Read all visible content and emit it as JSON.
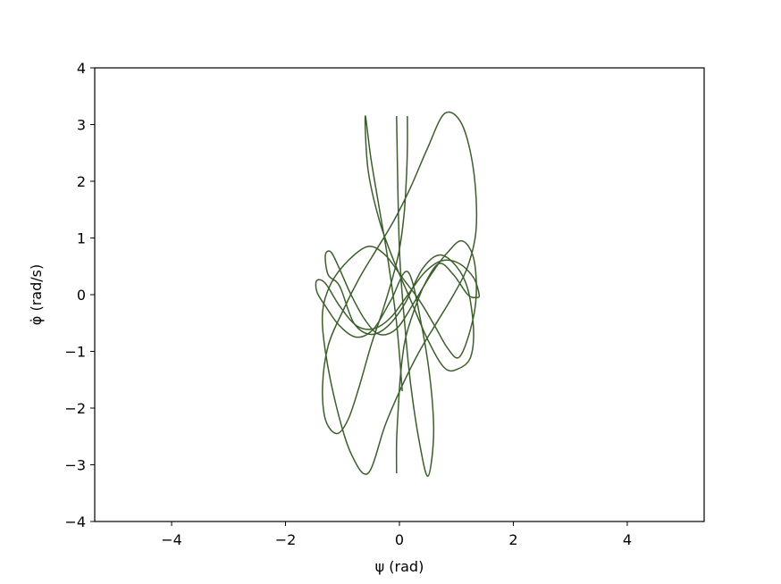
{
  "chart_data": {
    "type": "line",
    "title": "",
    "xlabel": "ψ (rad)",
    "ylabel": "φ̇ (rad/s)",
    "xlim": [
      -5.35,
      5.35
    ],
    "ylim": [
      -4,
      4
    ],
    "xticks": [
      -4,
      -2,
      0,
      2,
      4
    ],
    "yticks": [
      -4,
      -3,
      -2,
      -1,
      0,
      1,
      2,
      3,
      4
    ],
    "xtick_labels": [
      "−4",
      "−2",
      "0",
      "2",
      "4"
    ],
    "ytick_labels": [
      "−4",
      "−3",
      "−2",
      "−1",
      "0",
      "1",
      "2",
      "3",
      "4"
    ],
    "grid": false,
    "legend": null,
    "line_color": "#3b5e2b",
    "series": [
      {
        "description_visible": "phase-space trajectory",
        "x": [
          0.14,
          0.14,
          0.12,
          0.08,
          0.0,
          -0.12,
          -0.3,
          -0.5,
          -0.7,
          -0.9,
          -1.1,
          -1.3,
          -1.35,
          -1.25,
          -1.0,
          -0.7,
          -0.4,
          -0.1,
          0.2,
          0.5,
          0.8,
          1.1,
          1.3,
          1.35,
          1.2,
          0.95,
          0.65,
          0.35,
          0.05,
          -0.25,
          -0.55,
          -0.85,
          -1.1,
          -1.3,
          -1.35,
          -1.2,
          -0.9,
          -0.55,
          -0.25,
          0.05,
          0.35,
          0.62,
          0.85,
          1.05,
          1.25,
          1.35,
          1.3,
          1.1,
          0.85,
          0.55,
          0.25,
          -0.05,
          -0.35,
          -0.6,
          -0.85,
          -1.05,
          -1.2,
          -1.3,
          -1.25,
          -1.05,
          -0.8,
          -0.5,
          -0.2,
          0.1,
          0.4,
          0.7,
          1.0,
          1.2,
          1.3,
          1.25,
          1.05,
          0.8,
          0.5,
          0.2,
          -0.1,
          -0.35,
          -0.55,
          -0.6,
          -0.5,
          -0.35,
          -0.2,
          -0.05,
          0.05
        ],
        "y": [
          3.15,
          2.6,
          2.0,
          1.4,
          0.8,
          0.3,
          -0.3,
          -0.9,
          -1.6,
          -2.2,
          -2.45,
          -2.2,
          -1.6,
          -0.9,
          -0.3,
          0.3,
          0.8,
          1.3,
          1.9,
          2.6,
          3.2,
          3.0,
          2.2,
          1.2,
          0.5,
          0.0,
          -0.5,
          -1.0,
          -1.6,
          -2.3,
          -3.15,
          -2.8,
          -2.0,
          -1.0,
          -0.3,
          0.2,
          0.6,
          0.85,
          0.7,
          0.3,
          -0.1,
          -0.55,
          -0.95,
          -1.1,
          -0.6,
          0.0,
          0.65,
          0.95,
          0.75,
          0.35,
          -0.15,
          -0.6,
          -0.7,
          -0.45,
          0.0,
          0.45,
          0.75,
          0.7,
          0.35,
          0.15,
          -0.5,
          -0.7,
          -0.55,
          -0.15,
          0.45,
          0.7,
          0.5,
          0.1,
          -0.6,
          -1.1,
          -1.3,
          -1.3,
          -0.8,
          -0.1,
          0.6,
          1.3,
          2.2,
          3.15,
          2.4,
          1.5,
          0.6,
          -0.5,
          -1.7
        ]
      },
      {
        "x": [
          -0.05,
          -0.05,
          -0.02,
          0.02,
          0.1,
          0.25,
          0.45,
          0.7,
          0.95,
          1.2,
          1.35,
          1.4,
          1.3,
          1.05,
          0.75,
          0.45,
          0.15,
          -0.15,
          -0.45,
          -0.75,
          -1.05,
          -1.3,
          -1.45,
          -1.45,
          -1.3,
          -1.05,
          -0.75,
          -0.45,
          -0.15,
          0.15,
          0.4,
          0.55,
          0.6,
          0.5,
          0.35,
          0.2,
          0.1,
          0.0,
          -0.05
        ],
        "y": [
          -3.15,
          -2.6,
          -2.0,
          -1.4,
          -0.8,
          -0.3,
          0.2,
          0.55,
          0.35,
          0.0,
          -0.05,
          0.0,
          0.3,
          0.55,
          0.6,
          0.4,
          0.0,
          -0.4,
          -0.6,
          -0.55,
          -0.2,
          0.2,
          0.25,
          0.05,
          -0.2,
          -0.55,
          -0.75,
          -0.6,
          -0.1,
          0.4,
          -0.6,
          -1.6,
          -2.5,
          -3.2,
          -2.6,
          -1.6,
          -0.6,
          0.8,
          3.15
        ]
      }
    ]
  }
}
